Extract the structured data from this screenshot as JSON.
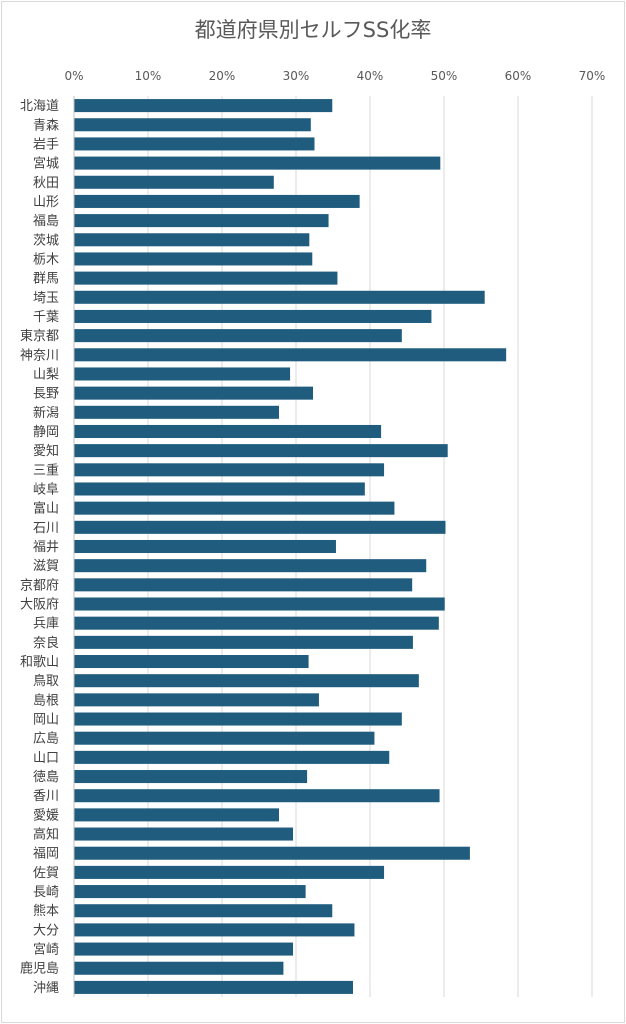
{
  "chart_data": {
    "type": "bar",
    "orientation": "horizontal",
    "title": "都道府県別セルフSS化率",
    "xlim": [
      0,
      0.7
    ],
    "x_ticks": [
      "0%",
      "10%",
      "20%",
      "30%",
      "40%",
      "50%",
      "60%",
      "70%"
    ],
    "x_axis_position": "top",
    "grid": true,
    "bar_color": "#1f5c7e",
    "categories": [
      "北海道",
      "青森",
      "岩手",
      "宮城",
      "秋田",
      "山形",
      "福島",
      "茨城",
      "栃木",
      "群馬",
      "埼玉",
      "千葉",
      "東京都",
      "神奈川",
      "山梨",
      "長野",
      "新潟",
      "静岡",
      "愛知",
      "三重",
      "岐阜",
      "富山",
      "石川",
      "福井",
      "滋賀",
      "京都府",
      "大阪府",
      "兵庫",
      "奈良",
      "和歌山",
      "鳥取",
      "島根",
      "岡山",
      "広島",
      "山口",
      "徳島",
      "香川",
      "愛媛",
      "高知",
      "福岡",
      "佐賀",
      "長崎",
      "熊本",
      "大分",
      "宮崎",
      "鹿児島",
      "沖縄"
    ],
    "values": [
      0.349,
      0.32,
      0.325,
      0.495,
      0.27,
      0.386,
      0.344,
      0.318,
      0.322,
      0.356,
      0.555,
      0.483,
      0.443,
      0.584,
      0.292,
      0.323,
      0.277,
      0.415,
      0.505,
      0.419,
      0.393,
      0.433,
      0.502,
      0.354,
      0.476,
      0.457,
      0.501,
      0.493,
      0.458,
      0.317,
      0.466,
      0.331,
      0.443,
      0.406,
      0.426,
      0.315,
      0.494,
      0.277,
      0.296,
      0.535,
      0.419,
      0.313,
      0.349,
      0.379,
      0.296,
      0.283,
      0.377
    ]
  }
}
